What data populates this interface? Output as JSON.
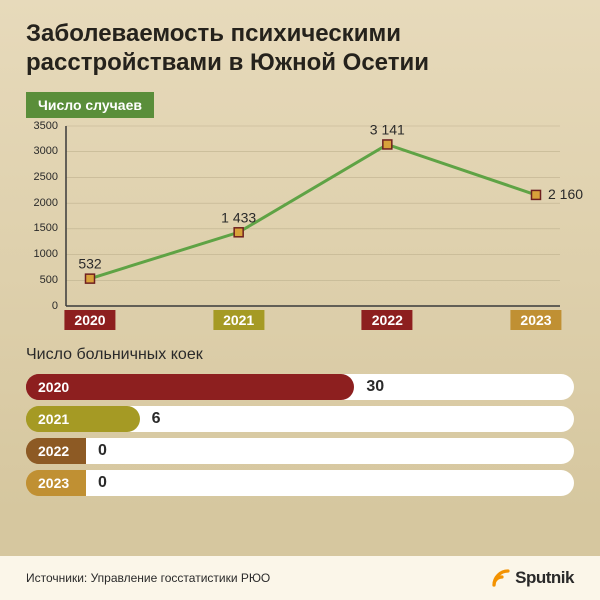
{
  "colors": {
    "bg_top": "#e7dabb",
    "bg_bottom": "#d6c79f",
    "footer_bg": "#fbf6e9",
    "title": "#25221c",
    "text": "#2a2a2a",
    "badge_bg": "#5a8e3a",
    "line": "#5fa345",
    "marker_fill": "#d8a23a",
    "marker_stroke": "#6f2020",
    "axis": "#3a3a3a",
    "grid": "#bfb28f",
    "logo_accent": "#f39200",
    "logo_text": "#2a2a2a"
  },
  "title": "Заболеваемость психическими расстройствами в Южной Осетии",
  "line_chart": {
    "subtitle": "Число случаев",
    "ylim": [
      0,
      3500
    ],
    "ytick_step": 500,
    "yticks": [
      0,
      500,
      1000,
      1500,
      2000,
      2500,
      3000,
      3500
    ],
    "line_width": 3,
    "marker_size": 9,
    "points": [
      {
        "year": "2020",
        "value": 532,
        "label": "532",
        "color": "#8d1f1f",
        "label_pos": "above"
      },
      {
        "year": "2021",
        "value": 1433,
        "label": "1 433",
        "color": "#a59a24",
        "label_pos": "above"
      },
      {
        "year": "2022",
        "value": 3141,
        "label": "3 141",
        "color": "#8d1f1f",
        "label_pos": "above"
      },
      {
        "year": "2023",
        "value": 2160,
        "label": "2 160",
        "color": "#c09033",
        "label_pos": "right"
      }
    ]
  },
  "bar_chart": {
    "title": "Число больничных коек",
    "max": 30,
    "year_label_width": 60,
    "bars": [
      {
        "year": "2020",
        "value": 30,
        "label": "30",
        "color": "#8d1f1f"
      },
      {
        "year": "2021",
        "value": 6,
        "label": "6",
        "color": "#a59a24"
      },
      {
        "year": "2022",
        "value": 0,
        "label": "0",
        "color": "#8d5a24"
      },
      {
        "year": "2023",
        "value": 0,
        "label": "0",
        "color": "#c09033"
      }
    ]
  },
  "footer": {
    "source": "Источники: Управление госстатистики РЮО",
    "logo_text": "Sputnik"
  }
}
